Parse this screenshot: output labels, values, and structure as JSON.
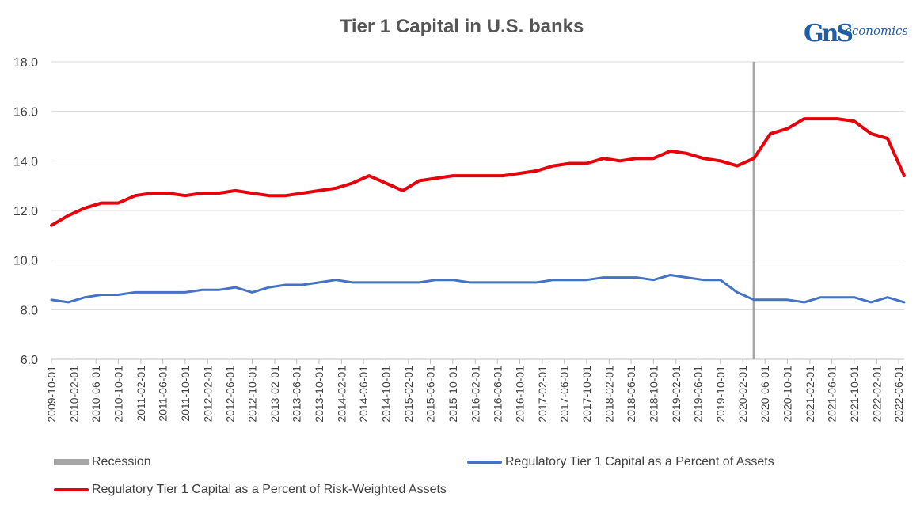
{
  "title": "Tier 1 Capital in U.S. banks",
  "logo": {
    "mark": "GnS",
    "text": "economics",
    "colors": {
      "g": "#1f5fa8",
      "s": "#2e9a4a",
      "text": "#1f5fa8"
    }
  },
  "colors": {
    "red": "#e8000b",
    "blue": "#4472c4",
    "recession": "#a6a6a6",
    "grid": "#d9d9d9"
  },
  "chart_data": {
    "type": "line",
    "title": "Tier 1 Capital in U.S. banks",
    "xlabel": "",
    "ylabel": "",
    "ylim": [
      6.0,
      18.0
    ],
    "yticks": [
      "6.0",
      "8.0",
      "10.0",
      "12.0",
      "14.0",
      "16.0",
      "18.0"
    ],
    "grid": "horizontal",
    "legend": "bottom",
    "x": [
      "2009-10-01",
      "2010-01-01",
      "2010-04-01",
      "2010-07-01",
      "2010-10-01",
      "2011-01-01",
      "2011-04-01",
      "2011-07-01",
      "2011-10-01",
      "2012-01-01",
      "2012-04-01",
      "2012-07-01",
      "2012-10-01",
      "2013-01-01",
      "2013-04-01",
      "2013-07-01",
      "2013-10-01",
      "2014-01-01",
      "2014-04-01",
      "2014-07-01",
      "2014-10-01",
      "2015-01-01",
      "2015-04-01",
      "2015-07-01",
      "2015-10-01",
      "2016-01-01",
      "2016-04-01",
      "2016-07-01",
      "2016-10-01",
      "2017-01-01",
      "2017-04-01",
      "2017-07-01",
      "2017-10-01",
      "2018-01-01",
      "2018-04-01",
      "2018-07-01",
      "2018-10-01",
      "2019-01-01",
      "2019-04-01",
      "2019-07-01",
      "2019-10-01",
      "2020-01-01",
      "2020-04-01",
      "2020-07-01",
      "2020-10-01",
      "2021-01-01",
      "2021-04-01",
      "2021-07-01",
      "2021-10-01",
      "2022-01-01",
      "2022-04-01",
      "2022-07-01"
    ],
    "x_tick_labels": [
      "2009-10-01",
      "2010-02-01",
      "2010-06-01",
      "2010-10-01",
      "2011-02-01",
      "2011-06-01",
      "2011-10-01",
      "2012-02-01",
      "2012-06-01",
      "2012-10-01",
      "2013-02-01",
      "2013-06-01",
      "2013-10-01",
      "2014-02-01",
      "2014-06-01",
      "2014-10-01",
      "2015-02-01",
      "2015-06-01",
      "2015-10-01",
      "2016-02-01",
      "2016-06-01",
      "2016-10-01",
      "2017-02-01",
      "2017-06-01",
      "2017-10-01",
      "2018-02-01",
      "2018-06-01",
      "2018-10-01",
      "2019-02-01",
      "2019-06-01",
      "2019-10-01",
      "2020-02-01",
      "2020-06-01",
      "2020-10-01",
      "2021-02-01",
      "2021-06-01",
      "2021-10-01",
      "2022-02-01",
      "2022-06-01"
    ],
    "recession": {
      "name": "Recession",
      "date": "2020-04-01"
    },
    "series": [
      {
        "name": "Regulatory Tier 1 Capital as a Percent of Assets",
        "color": "#4472c4",
        "values": [
          8.4,
          8.3,
          8.5,
          8.6,
          8.6,
          8.7,
          8.7,
          8.7,
          8.7,
          8.8,
          8.8,
          8.9,
          8.7,
          8.9,
          9.0,
          9.0,
          9.1,
          9.2,
          9.1,
          9.1,
          9.1,
          9.1,
          9.1,
          9.2,
          9.2,
          9.1,
          9.1,
          9.1,
          9.1,
          9.1,
          9.2,
          9.2,
          9.2,
          9.3,
          9.3,
          9.3,
          9.2,
          9.4,
          9.3,
          9.2,
          9.2,
          8.7,
          8.4,
          8.4,
          8.4,
          8.3,
          8.5,
          8.5,
          8.5,
          8.3,
          8.5,
          8.3
        ]
      },
      {
        "name": "Regulatory Tier 1 Capital as a Percent of Risk-Weighted Assets",
        "color": "#e8000b",
        "values": [
          11.4,
          11.8,
          12.1,
          12.3,
          12.3,
          12.6,
          12.7,
          12.7,
          12.6,
          12.7,
          12.7,
          12.8,
          12.7,
          12.6,
          12.6,
          12.7,
          12.8,
          12.9,
          13.1,
          13.4,
          13.1,
          12.8,
          13.2,
          13.3,
          13.4,
          13.4,
          13.4,
          13.4,
          13.5,
          13.6,
          13.8,
          13.9,
          13.9,
          14.1,
          14.0,
          14.1,
          14.1,
          14.4,
          14.3,
          14.1,
          14.0,
          13.8,
          14.1,
          15.1,
          15.3,
          15.7,
          15.7,
          15.7,
          15.6,
          15.1,
          14.9,
          13.4
        ]
      }
    ]
  }
}
